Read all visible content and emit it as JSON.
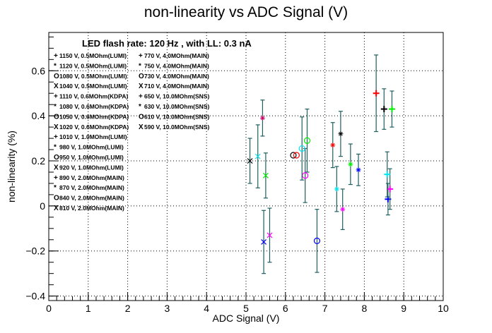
{
  "chart_data": {
    "type": "scatter",
    "title": "non-linearity vs ADC Signal (V)",
    "subtitle": "LED flash rate: 120 Hz , with LL: 0.3 nA",
    "xlabel": "ADC Signal (V)",
    "ylabel": "non-linearity (%)",
    "xlim": [
      0,
      10
    ],
    "ylim": [
      -0.42,
      0.77
    ],
    "x_ticks": [
      0,
      1,
      2,
      3,
      4,
      5,
      6,
      7,
      8,
      9,
      10
    ],
    "x_tick_labels": [
      "0",
      "1",
      "2",
      "3",
      "4",
      "5",
      "6",
      "7",
      "8",
      "9",
      "10"
    ],
    "y_ticks": [
      -0.4,
      -0.2,
      0,
      0.2,
      0.4,
      0.6
    ],
    "y_tick_labels": [
      "−0.4",
      "−0.2",
      "0",
      "0.2",
      "0.4",
      "0.6"
    ],
    "grid": true,
    "legend_placement": "left, two columns",
    "series": [
      {
        "name": "1150 V, 0.5MOhm(LUMI)",
        "marker": "plus",
        "color": "#000000",
        "points": [
          {
            "x": 8.5,
            "y": 0.43,
            "err": 0.09
          }
        ]
      },
      {
        "name": "1120 V, 0.5MOhm(LUMI)",
        "marker": "star",
        "color": "#000000",
        "points": [
          {
            "x": 7.4,
            "y": 0.32,
            "err": 0.1
          }
        ]
      },
      {
        "name": "1080 V, 0.5MOhm(LUMI)",
        "marker": "circle",
        "color": "#000000",
        "points": [
          {
            "x": 6.2,
            "y": 0.225,
            "err": 0.0
          }
        ]
      },
      {
        "name": "1040 V, 0.5MOhm(LUMI)",
        "marker": "x",
        "color": "#000000",
        "points": [
          {
            "x": 5.1,
            "y": 0.2,
            "err": 0.1
          }
        ]
      },
      {
        "name": "1110 V, 0.6MOhm(KDPA)",
        "marker": "plus",
        "color": "#ff0000",
        "points": [
          {
            "x": 8.3,
            "y": 0.5,
            "err": 0.17
          }
        ]
      },
      {
        "name": "1080 V, 0.6MOhm(KDPA)",
        "marker": "star",
        "color": "#ff0000",
        "points": [
          {
            "x": 7.2,
            "y": 0.27,
            "err": 0.1
          }
        ]
      },
      {
        "name": "1050 V, 0.6MOhm(KDPA)",
        "marker": "circle",
        "color": "#ff0000",
        "points": [
          {
            "x": 6.28,
            "y": 0.225,
            "err": 0.0
          }
        ]
      },
      {
        "name": "1020 V, 0.6MOhm(KDPA)",
        "marker": "x",
        "color": "#ff0000",
        "points": []
      },
      {
        "name": "1010 V, 1.0MOhm(LUMI)",
        "marker": "plus",
        "color": "#00ee00",
        "points": [
          {
            "x": 8.7,
            "y": 0.43,
            "err": 0.08
          }
        ]
      },
      {
        "name": "980 V, 1.0MOhm(LUMI)",
        "marker": "star",
        "color": "#00ee00",
        "points": [
          {
            "x": 7.65,
            "y": 0.185,
            "err": 0.09
          }
        ]
      },
      {
        "name": "950 V, 1.0MOhm(LUMI)",
        "marker": "circle",
        "color": "#00ee00",
        "points": [
          {
            "x": 6.55,
            "y": 0.29,
            "err": 0.14
          }
        ]
      },
      {
        "name": "920 V, 1.0MOhm(LUMI)",
        "marker": "x",
        "color": "#00ee00",
        "points": [
          {
            "x": 5.5,
            "y": 0.135,
            "err": 0.1
          }
        ]
      },
      {
        "name": "890 V, 2.0MOhm(MAIN)",
        "marker": "plus",
        "color": "#0000ff",
        "points": [
          {
            "x": 8.6,
            "y": 0.03,
            "err": 0.07
          }
        ]
      },
      {
        "name": "870 V, 2.0MOhm(MAIN)",
        "marker": "star",
        "color": "#0000ff",
        "points": [
          {
            "x": 7.85,
            "y": 0.16,
            "err": 0.07
          }
        ]
      },
      {
        "name": "840 V, 2.0MOhm(MAIN)",
        "marker": "circle",
        "color": "#0000ff",
        "points": [
          {
            "x": 6.8,
            "y": -0.155,
            "err": 0.14
          }
        ]
      },
      {
        "name": "810 V, 2.0MOhm(MAIN)",
        "marker": "x",
        "color": "#0000ff",
        "points": [
          {
            "x": 5.45,
            "y": -0.16,
            "err": 0.14
          }
        ]
      },
      {
        "name": "770 V, 4.0MOhm(MAIN)",
        "marker": "plus",
        "color": "#ff00ff",
        "points": [
          {
            "x": 8.65,
            "y": 0.075,
            "err": 0.09
          }
        ]
      },
      {
        "name": "750 V, 4.0MOhm(MAIN)",
        "marker": "star",
        "color": "#ff00ff",
        "points": [
          {
            "x": 7.45,
            "y": -0.015,
            "err": 0.09
          }
        ]
      },
      {
        "name": "730 V, 4.0MOhm(MAIN)",
        "marker": "circle",
        "color": "#ff00ff",
        "points": [
          {
            "x": 6.5,
            "y": 0.135,
            "err": 0.12
          }
        ]
      },
      {
        "name": "710 V, 4.0MOhm(MAIN)",
        "marker": "x",
        "color": "#ff00ff",
        "points": [
          {
            "x": 5.6,
            "y": -0.13,
            "err": 0.12
          }
        ]
      },
      {
        "name": "650 V, 10.0MOhm(SNS)",
        "marker": "plus",
        "color": "#00e5ee",
        "points": [
          {
            "x": 8.58,
            "y": 0.14,
            "err": 0.1
          }
        ]
      },
      {
        "name": "630 V, 10.0MOhm(SNS)",
        "marker": "star",
        "color": "#00e5ee",
        "points": [
          {
            "x": 7.3,
            "y": 0.075,
            "err": 0.1
          }
        ]
      },
      {
        "name": "610 V, 10.0MOhm(SNS)",
        "marker": "circle",
        "color": "#00e5ee",
        "points": [
          {
            "x": 6.42,
            "y": 0.255,
            "err": 0.14
          }
        ]
      },
      {
        "name": "590 V, 10.0MOhm(SNS)",
        "marker": "x",
        "color": "#00e5ee",
        "points": [
          {
            "x": 5.3,
            "y": 0.22,
            "err": 0.14
          }
        ]
      },
      {
        "name": "",
        "marker": "star",
        "color": "#cc0066",
        "points": [
          {
            "x": 5.42,
            "y": 0.39,
            "err": 0.08
          }
        ]
      }
    ]
  },
  "legend": {
    "col1": [
      {
        "symbol": "+",
        "text": "1150 V, 0.5MOhm(LUMI)",
        "color": "#000000"
      },
      {
        "symbol": "*",
        "text": "1120 V, 0.5MOhm(LUMI)",
        "color": "#000000"
      },
      {
        "symbol": "O",
        "text": "1080 V, 0.5MOhm(LUMI)",
        "color": "#000000"
      },
      {
        "symbol": "X",
        "text": "1040 V, 0.5MOhm(LUMI)",
        "color": "#000000"
      },
      {
        "symbol": "+",
        "text": "1110 V, 0.6MOhm(KDPA)",
        "color": "#ff0000"
      },
      {
        "symbol": "*",
        "text": "1080 V, 0.6MOhm(KDPA)",
        "color": "#ff0000"
      },
      {
        "symbol": "O",
        "text": "1050 V, 0.6MOhm(KDPA)",
        "color": "#ff0000"
      },
      {
        "symbol": "X",
        "text": "1020 V, 0.6MOhm(KDPA)",
        "color": "#ff0000"
      },
      {
        "symbol": "+",
        "text": "1010 V, 1.0MOhm(LUMI)",
        "color": "#00ee00"
      },
      {
        "symbol": "*",
        "text": "980 V, 1.0MOhm(LUMI)",
        "color": "#00ee00"
      },
      {
        "symbol": "O",
        "text": "950 V, 1.0MOhm(LUMI)",
        "color": "#00ee00"
      },
      {
        "symbol": "X",
        "text": "920 V, 1.0MOhm(LUMI)",
        "color": "#00ee00"
      },
      {
        "symbol": "+",
        "text": "890 V, 2.0MOhm(MAIN)",
        "color": "#0000ff"
      },
      {
        "symbol": "*",
        "text": "870 V, 2.0MOhm(MAIN)",
        "color": "#0000ff"
      },
      {
        "symbol": "O",
        "text": "840 V, 2.0MOhm(MAIN)",
        "color": "#0000ff"
      },
      {
        "symbol": "X",
        "text": "810 V, 2.0MOhm(MAIN)",
        "color": "#0000ff"
      }
    ],
    "col2": [
      {
        "symbol": "+",
        "text": "770 V, 4.0MOhm(MAIN)",
        "color": "#ff00ff"
      },
      {
        "symbol": "*",
        "text": "750 V, 4.0MOhm(MAIN)",
        "color": "#ff00ff"
      },
      {
        "symbol": "O",
        "text": "730 V, 4.0MOhm(MAIN)",
        "color": "#ff00ff"
      },
      {
        "symbol": "X",
        "text": "710 V, 4.0MOhm(MAIN)",
        "color": "#ff00ff"
      },
      {
        "symbol": "+",
        "text": "650 V, 10.0MOhm(SNS)",
        "color": "#00e5ee"
      },
      {
        "symbol": "*",
        "text": "630 V, 10.0MOhm(SNS)",
        "color": "#00e5ee"
      },
      {
        "symbol": "O",
        "text": "610 V, 10.0MOhm(SNS)",
        "color": "#00e5ee"
      },
      {
        "symbol": "X",
        "text": "590 V, 10.0MOhm(SNS)",
        "color": "#00e5ee"
      }
    ]
  },
  "colors": {
    "errorbar": "#1f5f5f",
    "grid": "#000000",
    "axis": "#000000"
  }
}
